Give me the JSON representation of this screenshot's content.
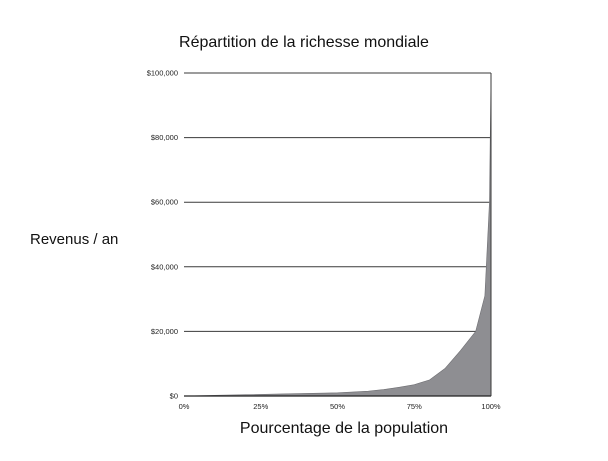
{
  "chart_data": {
    "type": "area",
    "title": "Répartition de la richesse mondiale",
    "xlabel": "Pourcentage de la population",
    "ylabel": "Revenus / an",
    "x_ticks": [
      "0%",
      "25%",
      "50%",
      "75%",
      "100%"
    ],
    "y_ticks": [
      "$0",
      "$20,000",
      "$40,000",
      "$60,000",
      "$80,000",
      "$100,000"
    ],
    "xlim": [
      0,
      100
    ],
    "ylim": [
      0,
      100000
    ],
    "grid": "horizontal",
    "legend": "none",
    "x": [
      0,
      10,
      20,
      30,
      40,
      50,
      60,
      65,
      70,
      75,
      80,
      85,
      90,
      95,
      98,
      99.5,
      100
    ],
    "values": [
      0,
      200,
      400,
      600,
      800,
      1000,
      1500,
      2000,
      2700,
      3500,
      5000,
      8500,
      14000,
      20000,
      31000,
      60000,
      100000
    ],
    "fill_color": "#8e8e92"
  }
}
